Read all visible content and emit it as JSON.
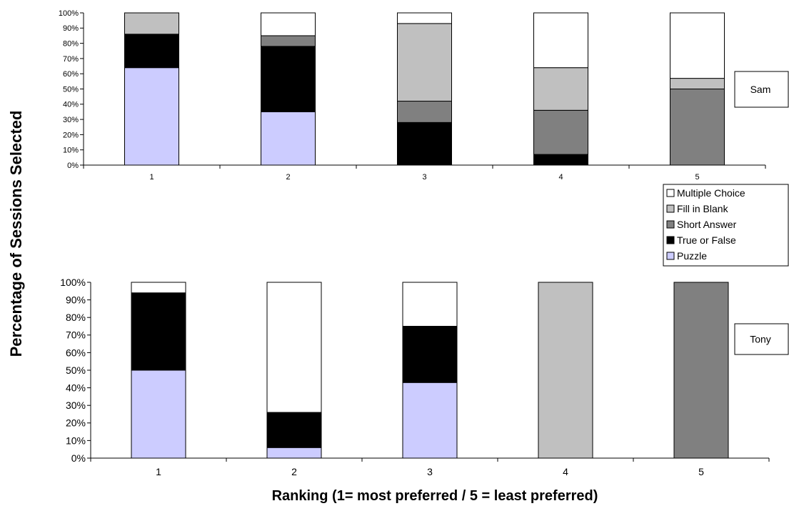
{
  "chart_data": {
    "type": "bar",
    "stacked": true,
    "percent": true,
    "ylabel": "Percentage of Sessions Selected",
    "xlabel": "Ranking (1= most preferred / 5 = least preferred)",
    "categories": [
      "1",
      "2",
      "3",
      "4",
      "5"
    ],
    "ylim": [
      0,
      100
    ],
    "yticks": [
      "0%",
      "10%",
      "20%",
      "30%",
      "40%",
      "50%",
      "60%",
      "70%",
      "80%",
      "90%",
      "100%"
    ],
    "grid": false,
    "legend_placement": "right",
    "series_order": [
      "Puzzle",
      "True or False",
      "Short Answer",
      "Fill in Blank",
      "Multiple Choice"
    ],
    "legend_items": [
      "Multiple Choice",
      "Fill in Blank",
      "Short Answer",
      "True or False",
      "Puzzle"
    ],
    "colors": {
      "Puzzle": "#ccccff",
      "True or False": "#000000",
      "Short Answer": "#808080",
      "Fill in Blank": "#c0c0c0",
      "Multiple Choice": "#ffffff"
    },
    "panels": [
      {
        "name": "Sam",
        "series": [
          {
            "name": "Puzzle",
            "values": [
              64,
              35,
              0,
              0,
              0
            ]
          },
          {
            "name": "True or False",
            "values": [
              22,
              43,
              28,
              7,
              0
            ]
          },
          {
            "name": "Short Answer",
            "values": [
              0,
              7,
              14,
              29,
              50
            ]
          },
          {
            "name": "Fill in Blank",
            "values": [
              14,
              0,
              51,
              28,
              7
            ]
          },
          {
            "name": "Multiple Choice",
            "values": [
              0,
              15,
              7,
              36,
              43
            ]
          }
        ]
      },
      {
        "name": "Tony",
        "series": [
          {
            "name": "Puzzle",
            "values": [
              50,
              6,
              43,
              0,
              0
            ]
          },
          {
            "name": "True or False",
            "values": [
              44,
              20,
              32,
              0,
              0
            ]
          },
          {
            "name": "Short Answer",
            "values": [
              0,
              0,
              0,
              0,
              100
            ]
          },
          {
            "name": "Fill in Blank",
            "values": [
              0,
              0,
              0,
              100,
              0
            ]
          },
          {
            "name": "Multiple Choice",
            "values": [
              6,
              74,
              25,
              0,
              0
            ]
          }
        ]
      }
    ]
  }
}
